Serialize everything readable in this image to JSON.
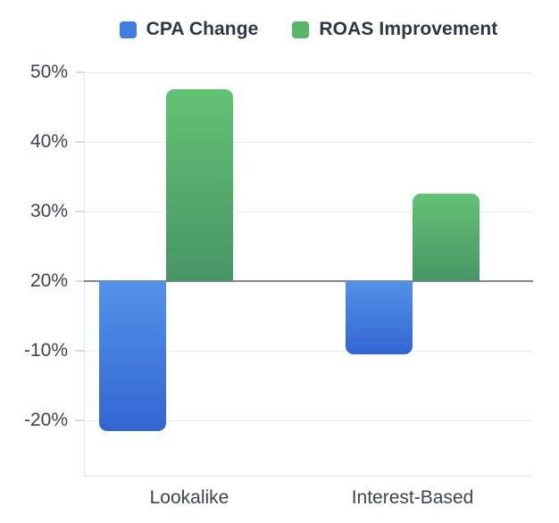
{
  "colors": {
    "cpa_blue": "#3f7ee0",
    "cpa_blue_gradient_top": "#5292e9",
    "cpa_blue_gradient_bottom": "#3365d2",
    "roas_green": "#56b569",
    "roas_green_gradient_top": "#63c274",
    "roas_green_gradient_bottom": "#489566",
    "tick_text": "#3a4453",
    "legend_text": "#2d3745",
    "gridline": "#e9ecf1",
    "baseline": "#7e8897"
  },
  "legend": {
    "items": [
      {
        "label": "CPA Change",
        "color": "#3f7ee0"
      },
      {
        "label": "ROAS Improvement",
        "color": "#56b569"
      }
    ]
  },
  "y_axis": {
    "tick_labels": [
      "50%",
      "40%",
      "30%",
      "20%",
      "-10%",
      "-20%"
    ],
    "baseline_tick_index": 3
  },
  "x_axis": {
    "categories": [
      "Lookalike",
      "Interest-Based"
    ]
  },
  "chart_data": {
    "type": "bar",
    "categories": [
      "Lookalike",
      "Interest-Based"
    ],
    "series": [
      {
        "name": "CPA Change",
        "color": "#3f7ee0",
        "values": [
          -21.5,
          -10.5
        ]
      },
      {
        "name": "ROAS Improvement",
        "color": "#56b569",
        "values": [
          47.5,
          32.5
        ]
      }
    ],
    "title": "",
    "xlabel": "",
    "ylabel": "",
    "y_tick_labels": [
      "50%",
      "40%",
      "30%",
      "20%",
      "-10%",
      "-20%"
    ],
    "y_axis_note": "Ticks are evenly spaced but discontinuous (20% jumps to -10%); the 20% gridline is the visual zero baseline from which bars extend.",
    "legend_position": "top",
    "grid": true
  }
}
